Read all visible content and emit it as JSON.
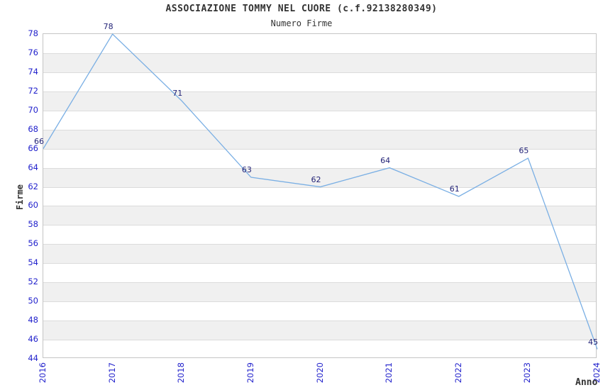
{
  "chart_data": {
    "type": "line",
    "title": "ASSOCIAZIONE TOMMY NEL CUORE (c.f.92138280349)",
    "subtitle": "Numero Firme",
    "xlabel": "Anno",
    "ylabel": "Firme",
    "categories": [
      "2016",
      "2017",
      "2018",
      "2019",
      "2020",
      "2021",
      "2022",
      "2023",
      "2024"
    ],
    "series": [
      {
        "name": "Numero Firme",
        "values": [
          66,
          78,
          71,
          63,
          62,
          64,
          61,
          65,
          45
        ]
      }
    ],
    "ylim": [
      44,
      78
    ],
    "ytick_step": 2,
    "grid": "horizontal",
    "banded_background": true,
    "legend_position": "none",
    "colors": {
      "line": "#7aafe4",
      "tick": "#2222cc",
      "dlabel": "#232377",
      "text": "#333333",
      "band": "#f0f0f0",
      "grid": "#dcdcdc",
      "border": "#c5c5c5"
    }
  }
}
